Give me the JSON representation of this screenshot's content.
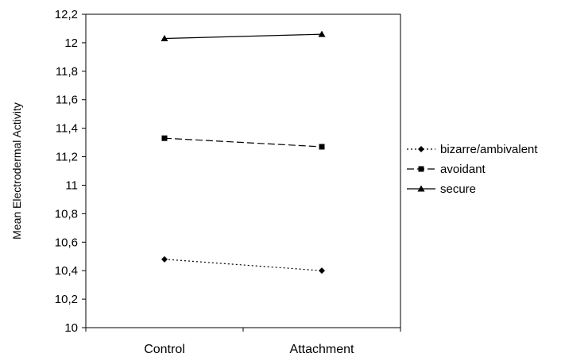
{
  "chart_data": {
    "type": "line",
    "title": "",
    "xlabel": "",
    "ylabel": "Mean Electrodermal Activity",
    "categories": [
      "Control",
      "Attachment"
    ],
    "ylim": [
      10,
      12.2
    ],
    "ytick_values": [
      10,
      10.2,
      10.4,
      10.6,
      10.8,
      11,
      11.2,
      11.4,
      11.6,
      11.8,
      12,
      12.2
    ],
    "ytick_labels": [
      "10",
      "10,2",
      "10,4",
      "10,6",
      "10,8",
      "11",
      "11,2",
      "11,4",
      "11,6",
      "11,8",
      "12",
      "12,2"
    ],
    "grid": false,
    "legend_position": "right",
    "series": [
      {
        "name": "bizarre/ambivalent",
        "values": [
          10.48,
          10.4
        ],
        "marker": "diamond",
        "line_style": "dotted",
        "color": "#000000"
      },
      {
        "name": "avoidant",
        "values": [
          11.33,
          11.27
        ],
        "marker": "square",
        "line_style": "dashed",
        "color": "#000000"
      },
      {
        "name": "secure",
        "values": [
          12.03,
          12.06
        ],
        "marker": "triangle",
        "line_style": "solid",
        "color": "#000000"
      }
    ]
  }
}
